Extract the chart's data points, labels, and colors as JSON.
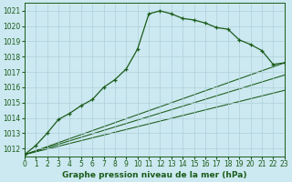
{
  "title": "Graphe pression niveau de la mer (hPa)",
  "background_color": "#cce8f0",
  "line_color": "#1a5c1a",
  "xlim": [
    0,
    23
  ],
  "ylim": [
    1011.5,
    1021.5
  ],
  "xticks": [
    0,
    1,
    2,
    3,
    4,
    5,
    6,
    7,
    8,
    9,
    10,
    11,
    12,
    13,
    14,
    15,
    16,
    17,
    18,
    19,
    20,
    21,
    22,
    23
  ],
  "yticks": [
    1012,
    1013,
    1014,
    1015,
    1016,
    1017,
    1018,
    1019,
    1020,
    1021
  ],
  "main_x": [
    0,
    1,
    2,
    3,
    4,
    5,
    6,
    7,
    8,
    9,
    10,
    11,
    12,
    13,
    14,
    15,
    16,
    17,
    18,
    19,
    20,
    21,
    22,
    23
  ],
  "main_y": [
    1011.6,
    1012.2,
    1013.0,
    1013.9,
    1014.3,
    1014.8,
    1015.2,
    1016.0,
    1016.5,
    1017.2,
    1018.5,
    1020.8,
    1021.0,
    1020.8,
    1020.5,
    1020.4,
    1020.2,
    1019.9,
    1019.8,
    1019.1,
    1018.8,
    1018.4,
    1017.5,
    1017.6
  ],
  "straight_lines": [
    {
      "x0": 0,
      "y0": 1011.6,
      "x1": 23,
      "y1": 1017.6
    },
    {
      "x0": 0,
      "y0": 1011.6,
      "x1": 23,
      "y1": 1016.8
    },
    {
      "x0": 0,
      "y0": 1011.6,
      "x1": 23,
      "y1": 1015.8
    }
  ],
  "grid_color": "#afd0da",
  "spine_color": "#1a5c1a",
  "tick_color": "#1a5c1a",
  "label_color": "#1a5c1a",
  "title_fontsize": 6.5,
  "tick_fontsize": 5.5,
  "linewidth": 0.9,
  "marker_size": 3.5
}
